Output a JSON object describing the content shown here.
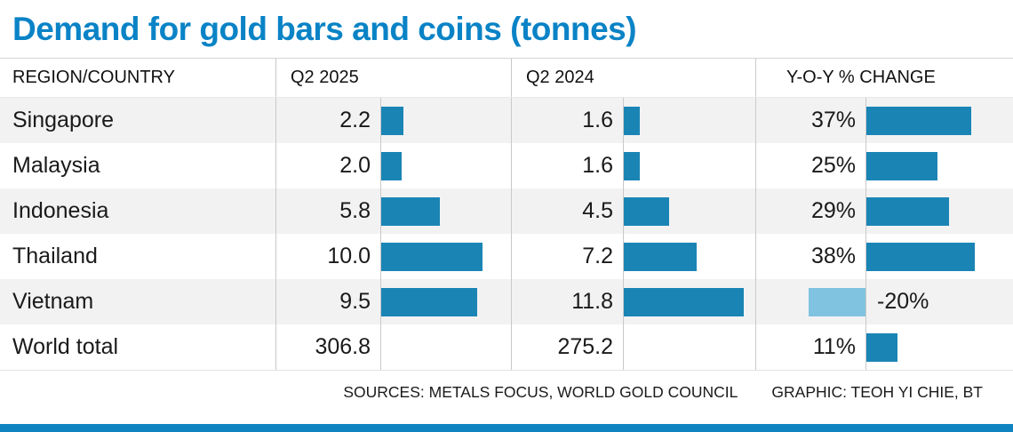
{
  "title": "Demand for gold bars and coins (tonnes)",
  "columns": [
    "REGION/COUNTRY",
    "Q2 2025",
    "Q2 2024",
    "Y-O-Y % CHANGE"
  ],
  "rows": [
    {
      "region": "Singapore",
      "q2_2025": "2.2",
      "q2_2024": "1.6",
      "yoy": "37%",
      "show_tonnes_bars": true
    },
    {
      "region": "Malaysia",
      "q2_2025": "2.0",
      "q2_2024": "1.6",
      "yoy": "25%",
      "show_tonnes_bars": true
    },
    {
      "region": "Indonesia",
      "q2_2025": "5.8",
      "q2_2024": "4.5",
      "yoy": "29%",
      "show_tonnes_bars": true
    },
    {
      "region": "Thailand",
      "q2_2025": "10.0",
      "q2_2024": "7.2",
      "yoy": "38%",
      "show_tonnes_bars": true
    },
    {
      "region": "Vietnam",
      "q2_2025": "9.5",
      "q2_2024": "11.8",
      "yoy": "-20%",
      "show_tonnes_bars": true
    },
    {
      "region": "World total",
      "q2_2025": "306.8",
      "q2_2024": "275.2",
      "yoy": "11%",
      "show_tonnes_bars": false
    }
  ],
  "footer": {
    "sources": "SOURCES: METALS FOCUS, WORLD GOLD COUNCIL",
    "graphic": "GRAPHIC: TEOH YI CHIE, BT"
  },
  "colors": {
    "title": "#0a83c6",
    "bar": "#1a85b5",
    "bar_negative": "#7fc3e0",
    "row_shade": "#f2f2f3",
    "bottom_strip": "#0f84c0",
    "divider": "#c9c9c9"
  },
  "chart_data": {
    "type": "bar",
    "title": "Demand for gold bars and coins (tonnes)",
    "categories": [
      "Singapore",
      "Malaysia",
      "Indonesia",
      "Thailand",
      "Vietnam",
      "World total"
    ],
    "series": [
      {
        "name": "Q2 2025",
        "values": [
          2.2,
          2.0,
          5.8,
          10.0,
          9.5,
          306.8
        ],
        "unit": "tonnes"
      },
      {
        "name": "Q2 2024",
        "values": [
          1.6,
          1.6,
          4.5,
          7.2,
          11.8,
          275.2
        ],
        "unit": "tonnes"
      },
      {
        "name": "Y-O-Y % CHANGE",
        "values": [
          37,
          25,
          29,
          38,
          -20,
          11
        ],
        "unit": "percent"
      }
    ],
    "legend_position": "none",
    "grid": false,
    "notes": "Horizontal in-table bars; World total tonnes shown without bars; negative Y-O-Y drawn as light-blue bar extending left of baseline with label to the right"
  }
}
